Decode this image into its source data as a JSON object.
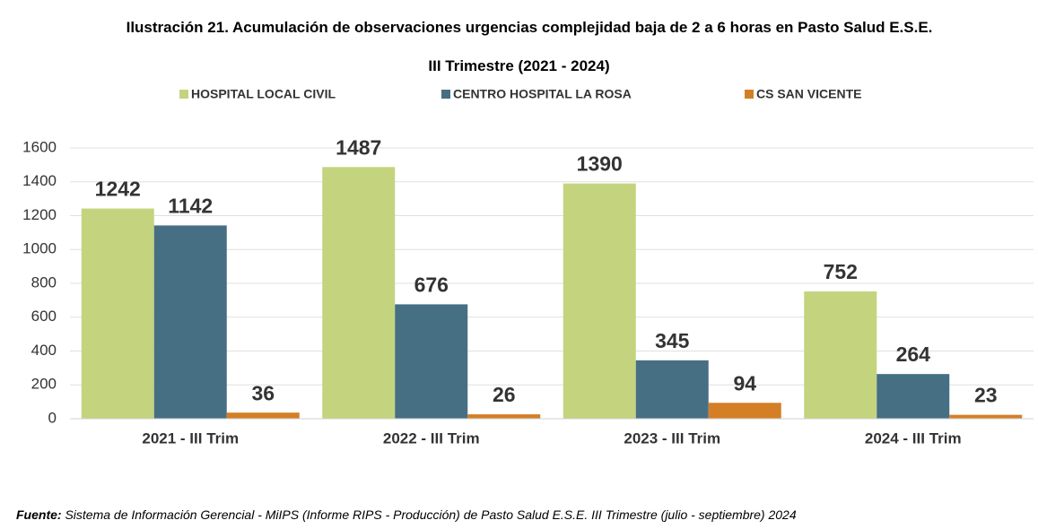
{
  "chart_data": {
    "type": "bar",
    "title": "Ilustración 21. Acumulación de observaciones urgencias complejidad baja de 2 a 6 horas en Pasto Salud E.S.E.",
    "subtitle": "III Trimestre (2021 - 2024)",
    "categories": [
      "2021 - III Trim",
      "2022 - III Trim",
      "2023 - III Trim",
      "2024 - III Trim"
    ],
    "series": [
      {
        "name": "HOSPITAL LOCAL CIVIL",
        "color": "#c4d47e",
        "values": [
          1242,
          1487,
          1390,
          752
        ]
      },
      {
        "name": "CENTRO HOSPITAL LA ROSA",
        "color": "#466f84",
        "values": [
          1142,
          676,
          345,
          264
        ]
      },
      {
        "name": "CS SAN VICENTE",
        "color": "#d47f26",
        "values": [
          36,
          26,
          94,
          23
        ]
      }
    ],
    "ylim": [
      0,
      1600
    ],
    "yticks": [
      0,
      200,
      400,
      600,
      800,
      1000,
      1200,
      1400,
      1600
    ],
    "grid": true,
    "legend": "top",
    "source_label": "Fuente:",
    "source": "Sistema de Información Gerencial - MiIPS (Informe RIPS - Producción) de Pasto Salud E.S.E. III Trimestre (julio - septiembre) 2024"
  }
}
